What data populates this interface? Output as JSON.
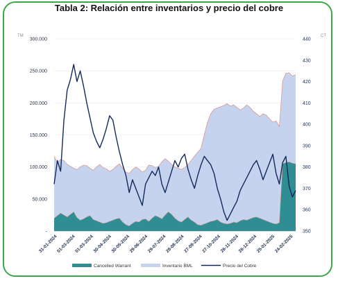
{
  "title": "Tabla 2: Relación entre inventarios y precio del cobre",
  "chart_data": {
    "type": "area",
    "left_unit": "TM",
    "right_unit": "CT",
    "left_axis": {
      "min": 0,
      "max": 300000,
      "ticks": [
        "-",
        "50.000",
        "100.000",
        "150.000",
        "200.000",
        "250.000",
        "300.000"
      ]
    },
    "right_axis": {
      "min": 350,
      "max": 440,
      "ticks": [
        "350",
        "360",
        "370",
        "380",
        "390",
        "400",
        "410",
        "420",
        "430",
        "440"
      ]
    },
    "x_ticks": [
      "31-01-2024",
      "01-03-2024",
      "01-03-2024",
      "30-04-2024",
      "30-05-2024",
      "29-06-2024",
      "29-07-2024",
      "28-08-2024",
      "27-09-2024",
      "27-10-2024",
      "26-11-2024",
      "26-12-2024",
      "25-01-2025",
      "24-02-2025"
    ],
    "colors": {
      "inventario": "#c5d3ee",
      "inventario_edge": "#d9998f",
      "cancelled": "#2f8d94",
      "precio": "#13285a",
      "border": "#3aa845"
    },
    "series": [
      {
        "name": "Inventario BML",
        "axis": "left",
        "values": [
          117000,
          106000,
          112000,
          110000,
          104000,
          101000,
          98000,
          96000,
          100000,
          103000,
          102000,
          98000,
          95000,
          100000,
          104000,
          99000,
          97000,
          93000,
          96000,
          101000,
          105000,
          98000,
          92000,
          90000,
          96000,
          100000,
          97000,
          92000,
          95000,
          103000,
          102000,
          99000,
          101000,
          108000,
          113000,
          109000,
          104000,
          100000,
          98000,
          96000,
          99000,
          104000,
          110000,
          117000,
          123000,
          129000,
          150000,
          170000,
          183000,
          190000,
          192000,
          194000,
          196000,
          199000,
          195000,
          197000,
          193000,
          189000,
          192000,
          197000,
          193000,
          187000,
          183000,
          179000,
          183000,
          181000,
          175000,
          170000,
          172000,
          163000,
          234000,
          246000,
          247000,
          242000,
          244000
        ]
      },
      {
        "name": "Cancelled Warrant",
        "axis": "left",
        "values": [
          20000,
          24000,
          28000,
          25000,
          22000,
          26000,
          30000,
          21000,
          17000,
          19000,
          22000,
          24000,
          18000,
          16000,
          14000,
          12000,
          13000,
          15000,
          17000,
          19000,
          20000,
          14000,
          10000,
          8000,
          12000,
          15000,
          14000,
          18000,
          19000,
          15000,
          20000,
          24000,
          22000,
          19000,
          25000,
          30000,
          26000,
          20000,
          16000,
          14000,
          18000,
          22000,
          17000,
          14000,
          10000,
          9000,
          11000,
          13000,
          15000,
          16000,
          18000,
          14000,
          12000,
          11000,
          12000,
          14000,
          13000,
          16000,
          18000,
          17000,
          19000,
          21000,
          22000,
          20000,
          18000,
          16000,
          14000,
          12000,
          11000,
          13000,
          105000,
          107000,
          108000,
          106000,
          105000
        ]
      },
      {
        "name": "Precio del Cobre",
        "axis": "right",
        "values": [
          372,
          383,
          378,
          402,
          416,
          421,
          428,
          420,
          425,
          418,
          410,
          403,
          396,
          392,
          389,
          393,
          398,
          404,
          402,
          394,
          387,
          381,
          376,
          368,
          374,
          370,
          366,
          362,
          372,
          375,
          378,
          376,
          380,
          372,
          368,
          373,
          378,
          383,
          380,
          384,
          386,
          379,
          374,
          370,
          376,
          381,
          385,
          383,
          381,
          377,
          370,
          365,
          359,
          355,
          358,
          361,
          364,
          369,
          372,
          375,
          378,
          381,
          383,
          379,
          374,
          378,
          382,
          386,
          377,
          372,
          382,
          385,
          371,
          366,
          369
        ]
      }
    ]
  }
}
